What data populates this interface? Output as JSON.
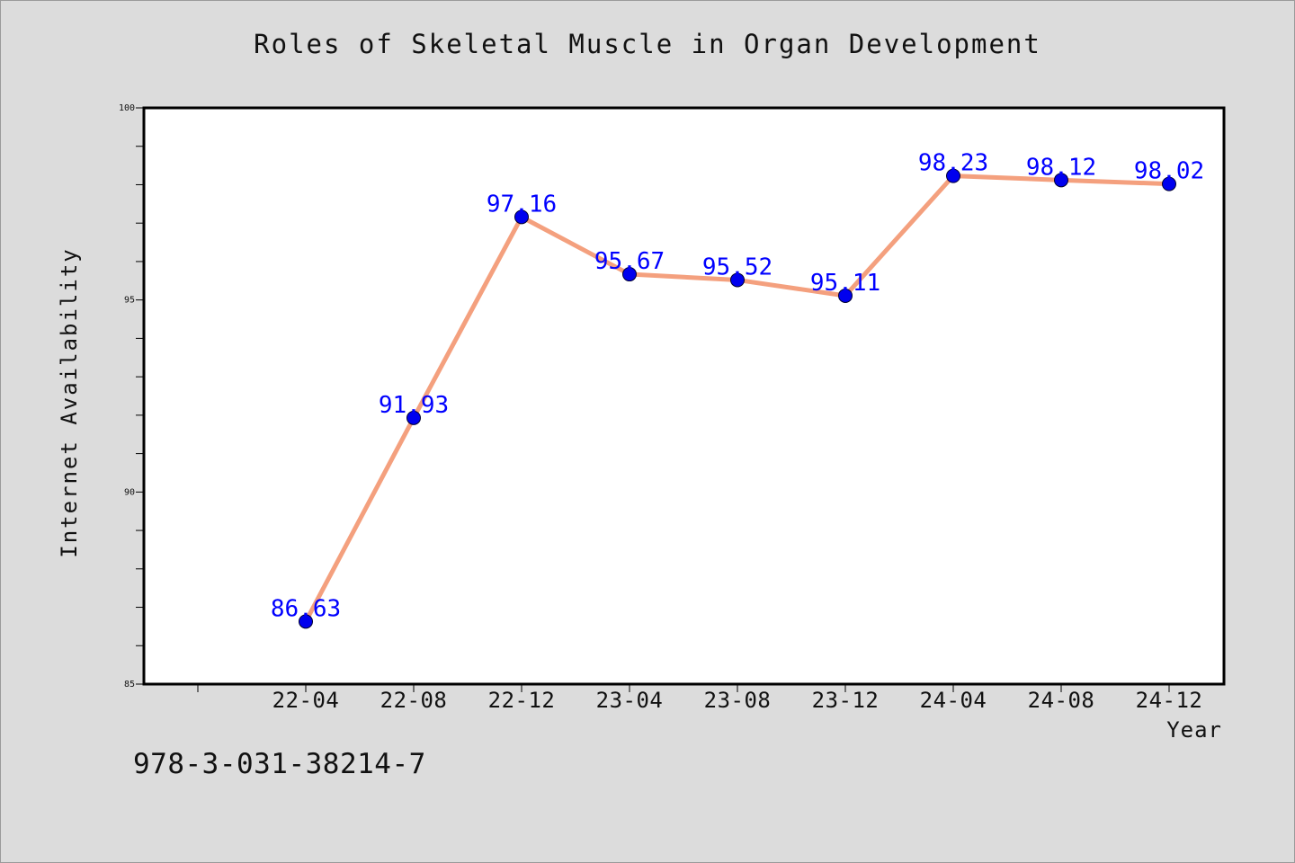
{
  "page": {
    "title": "Roles of Skeletal Muscle in Organ Development",
    "footnote": "978-3-031-38214-7"
  },
  "chart_data": {
    "type": "line",
    "title": "Roles of Skeletal Muscle in Organ Development",
    "xlabel": "Year",
    "ylabel": "Internet Availability",
    "categories": [
      "22-04",
      "22-08",
      "22-12",
      "23-04",
      "23-08",
      "23-12",
      "24-04",
      "24-08",
      "24-12"
    ],
    "series": [
      {
        "values": [
          86.63,
          91.93,
          97.16,
          95.67,
          95.52,
          95.11,
          98.23,
          98.12,
          98.02
        ],
        "labels": [
          "86.63",
          "91.93",
          "97.16",
          "95.67",
          "95.52",
          "95.11",
          "98.23",
          "98.12",
          "98.02"
        ],
        "line_color": "#f4a07e",
        "marker_color": "#0000ee"
      }
    ],
    "ylim": [
      85,
      100
    ],
    "y_ticks": [
      85,
      90,
      95,
      100
    ],
    "y_tick_labels": [
      "85",
      "90",
      "95",
      "100"
    ],
    "grid": false,
    "legend": "none"
  }
}
